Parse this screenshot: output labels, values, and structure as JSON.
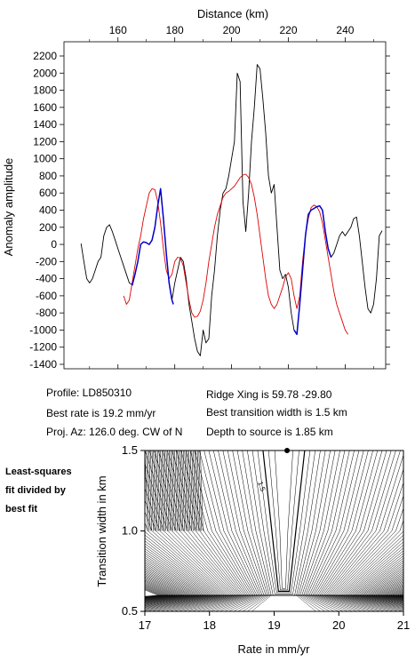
{
  "chart_data": [
    {
      "type": "line",
      "title": "",
      "xlabel": "Distance (km)",
      "ylabel": "Anomaly amplitude",
      "xlim": [
        146,
        253
      ],
      "ylim": [
        -1450,
        2250
      ],
      "x_ticks": [
        160,
        180,
        200,
        220,
        240
      ],
      "y_ticks": [
        -1400,
        -1200,
        -1000,
        -800,
        -600,
        -400,
        -200,
        0,
        200,
        400,
        600,
        800,
        1000,
        1200,
        1400,
        1600,
        1800,
        2000,
        2200
      ],
      "grid": false,
      "series": [
        {
          "color": "#000000",
          "points": [
            [
              147,
              10
            ],
            [
              148,
              -200
            ],
            [
              149,
              -400
            ],
            [
              150,
              -450
            ],
            [
              151,
              -400
            ],
            [
              152,
              -300
            ],
            [
              153,
              -200
            ],
            [
              154,
              -150
            ],
            [
              155,
              100
            ],
            [
              156,
              200
            ],
            [
              157,
              230
            ],
            [
              158,
              150
            ],
            [
              159,
              50
            ],
            [
              160,
              -50
            ],
            [
              161,
              -150
            ],
            [
              162,
              -250
            ],
            [
              163,
              -350
            ],
            [
              164,
              -450
            ],
            [
              165,
              -470
            ],
            [
              166,
              -350
            ],
            [
              167,
              -200
            ],
            [
              168,
              0
            ],
            [
              169,
              30
            ],
            [
              170,
              20
            ],
            [
              171,
              0
            ],
            [
              172,
              50
            ],
            [
              173,
              200
            ],
            [
              174,
              450
            ],
            [
              175,
              650
            ],
            [
              176,
              300
            ],
            [
              177,
              -100
            ],
            [
              178,
              -450
            ],
            [
              179,
              -650
            ],
            [
              180,
              -450
            ],
            [
              181,
              -300
            ],
            [
              182,
              -150
            ],
            [
              183,
              -200
            ],
            [
              184,
              -400
            ],
            [
              185,
              -700
            ],
            [
              186,
              -900
            ],
            [
              187,
              -1100
            ],
            [
              188,
              -1250
            ],
            [
              189,
              -1300
            ],
            [
              190,
              -1000
            ],
            [
              191,
              -1150
            ],
            [
              192,
              -1100
            ],
            [
              193,
              -600
            ],
            [
              194,
              -300
            ],
            [
              195,
              100
            ],
            [
              196,
              400
            ],
            [
              197,
              600
            ],
            [
              198,
              650
            ],
            [
              199,
              800
            ],
            [
              200,
              1000
            ],
            [
              201,
              1200
            ],
            [
              202,
              2000
            ],
            [
              203,
              1900
            ],
            [
              204,
              500
            ],
            [
              205,
              150
            ],
            [
              206,
              600
            ],
            [
              207,
              1200
            ],
            [
              208,
              1600
            ],
            [
              209,
              2100
            ],
            [
              210,
              2050
            ],
            [
              211,
              1700
            ],
            [
              212,
              1300
            ],
            [
              213,
              800
            ],
            [
              214,
              600
            ],
            [
              215,
              700
            ],
            [
              216,
              200
            ],
            [
              217,
              -300
            ],
            [
              218,
              -400
            ],
            [
              219,
              -350
            ],
            [
              220,
              -500
            ],
            [
              221,
              -800
            ],
            [
              222,
              -1000
            ],
            [
              223,
              -1050
            ],
            [
              224,
              -700
            ],
            [
              225,
              -300
            ],
            [
              226,
              100
            ],
            [
              227,
              350
            ],
            [
              228,
              400
            ],
            [
              229,
              420
            ],
            [
              230,
              440
            ],
            [
              231,
              450
            ],
            [
              232,
              400
            ],
            [
              233,
              150
            ],
            [
              234,
              -50
            ],
            [
              235,
              -150
            ],
            [
              236,
              -100
            ],
            [
              237,
              0
            ],
            [
              238,
              100
            ],
            [
              239,
              150
            ],
            [
              240,
              100
            ],
            [
              241,
              150
            ],
            [
              242,
              200
            ],
            [
              243,
              300
            ],
            [
              244,
              320
            ],
            [
              245,
              100
            ],
            [
              246,
              -200
            ],
            [
              247,
              -500
            ],
            [
              248,
              -750
            ],
            [
              249,
              -800
            ],
            [
              250,
              -700
            ],
            [
              251,
              -400
            ],
            [
              252,
              100
            ],
            [
              253,
              160
            ]
          ]
        },
        {
          "color": "#dd0000",
          "points": [
            [
              162,
              -600
            ],
            [
              163,
              -700
            ],
            [
              164,
              -650
            ],
            [
              165,
              -450
            ],
            [
              166,
              -250
            ],
            [
              167,
              -50
            ],
            [
              168,
              100
            ],
            [
              169,
              300
            ],
            [
              170,
              450
            ],
            [
              171,
              600
            ],
            [
              172,
              650
            ],
            [
              173,
              640
            ],
            [
              174,
              500
            ],
            [
              175,
              250
            ],
            [
              176,
              -50
            ],
            [
              177,
              -300
            ],
            [
              178,
              -400
            ],
            [
              179,
              -350
            ],
            [
              180,
              -200
            ],
            [
              181,
              -150
            ],
            [
              182,
              -160
            ],
            [
              183,
              -250
            ],
            [
              184,
              -450
            ],
            [
              185,
              -650
            ],
            [
              186,
              -800
            ],
            [
              187,
              -850
            ],
            [
              188,
              -840
            ],
            [
              189,
              -780
            ],
            [
              190,
              -650
            ],
            [
              191,
              -450
            ],
            [
              192,
              -200
            ],
            [
              193,
              0
            ],
            [
              194,
              200
            ],
            [
              195,
              350
            ],
            [
              196,
              450
            ],
            [
              197,
              550
            ],
            [
              198,
              600
            ],
            [
              199,
              620
            ],
            [
              200,
              650
            ],
            [
              201,
              680
            ],
            [
              202,
              730
            ],
            [
              203,
              780
            ],
            [
              204,
              810
            ],
            [
              205,
              820
            ],
            [
              206,
              780
            ],
            [
              207,
              700
            ],
            [
              208,
              550
            ],
            [
              209,
              350
            ],
            [
              210,
              100
            ],
            [
              211,
              -150
            ],
            [
              212,
              -400
            ],
            [
              213,
              -600
            ],
            [
              214,
              -700
            ],
            [
              215,
              -750
            ],
            [
              216,
              -700
            ],
            [
              217,
              -600
            ],
            [
              218,
              -500
            ],
            [
              219,
              -380
            ],
            [
              220,
              -330
            ],
            [
              221,
              -400
            ],
            [
              222,
              -600
            ],
            [
              223,
              -750
            ],
            [
              224,
              -600
            ],
            [
              225,
              -200
            ],
            [
              226,
              100
            ],
            [
              227,
              300
            ],
            [
              228,
              430
            ],
            [
              229,
              460
            ],
            [
              230,
              440
            ],
            [
              231,
              380
            ],
            [
              232,
              250
            ],
            [
              233,
              50
            ],
            [
              234,
              -150
            ],
            [
              235,
              -350
            ],
            [
              236,
              -550
            ],
            [
              237,
              -700
            ],
            [
              238,
              -800
            ],
            [
              239,
              -900
            ],
            [
              240,
              -1000
            ],
            [
              241,
              -1050
            ]
          ]
        },
        {
          "color": "#0000cc",
          "points": [
            [
              165,
              -480
            ],
            [
              166,
              -350
            ],
            [
              167,
              -200
            ],
            [
              168,
              0
            ],
            [
              169,
              30
            ],
            [
              170,
              20
            ],
            [
              171,
              0
            ],
            [
              172,
              50
            ],
            [
              173,
              200
            ],
            [
              174,
              450
            ],
            [
              175,
              650
            ],
            [
              176,
              300
            ],
            [
              177,
              -100
            ],
            [
              178,
              -450
            ],
            [
              179,
              -650
            ],
            [
              179.5,
              -700
            ]
          ]
        },
        {
          "color": "#0000cc",
          "points": [
            [
              222,
              -1000
            ],
            [
              223,
              -1050
            ],
            [
              224,
              -700
            ],
            [
              225,
              -300
            ],
            [
              226,
              100
            ],
            [
              227,
              350
            ],
            [
              228,
              400
            ],
            [
              229,
              420
            ],
            [
              230,
              440
            ],
            [
              231,
              450
            ],
            [
              232,
              400
            ],
            [
              233,
              150
            ],
            [
              234,
              -50
            ],
            [
              235,
              -150
            ]
          ]
        }
      ]
    },
    {
      "type": "contour",
      "title": "",
      "xlabel": "Rate in mm/yr",
      "ylabel": "Transition width in km",
      "xlim": [
        17,
        21
      ],
      "ylim": [
        0.5,
        1.5
      ],
      "x_ticks": [
        17,
        18,
        19,
        20,
        21
      ],
      "y_ticks": [
        0.5,
        1.0,
        1.5
      ],
      "y_tick_labels": [
        "0.5",
        "1.0",
        "1.5"
      ],
      "contour_label": "1.5",
      "best_fit_point": [
        19.2,
        1.5
      ],
      "minimum_rate": 19.15,
      "minimum_width": 0.65,
      "grid": false
    }
  ],
  "info": {
    "profile": "Profile: LD850310",
    "best_rate": "Best rate is 19.2 mm/yr",
    "proj_az": "Proj. Az: 126.0 deg. CW of N",
    "ridge_xing": "Ridge Xing is 59.78 -29.80",
    "transition": "Best transition width is 1.5 km",
    "depth": "Depth to source is   1.85 km"
  },
  "side_note": {
    "line1": "Least-squares",
    "line2": "fit divided by",
    "line3": "best fit"
  }
}
